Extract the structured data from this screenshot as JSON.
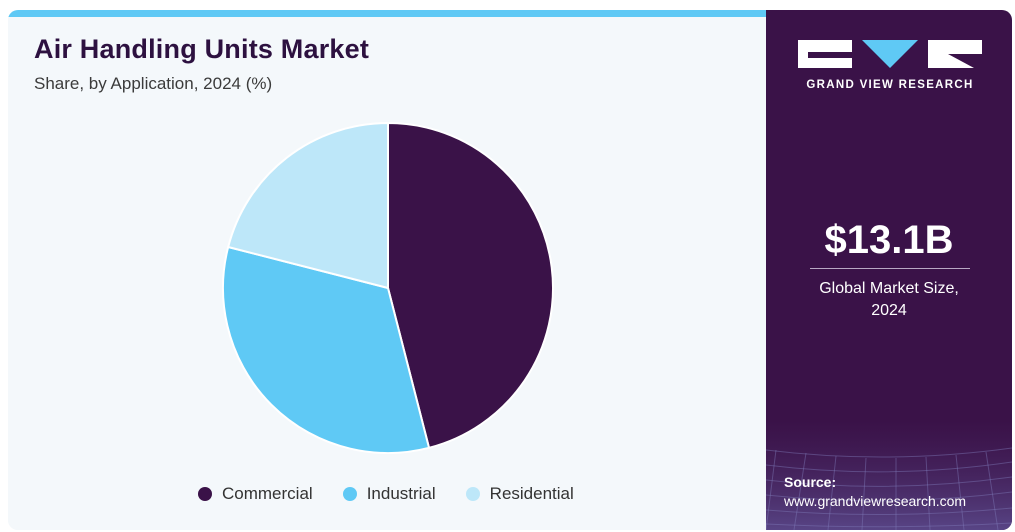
{
  "chart_data": {
    "type": "pie",
    "title": "Air Handling Units Market",
    "subtitle": "Share, by Application, 2024 (%)",
    "categories": [
      "Commercial",
      "Industrial",
      "Residential"
    ],
    "values": [
      46.0,
      33.0,
      21.0
    ],
    "colors": [
      "#3a1248",
      "#5fc9f5",
      "#bde7f9"
    ],
    "legend": "bottom",
    "start_angle_deg": 0,
    "direction": "clockwise"
  },
  "brand": {
    "name": "GRAND VIEW RESEARCH"
  },
  "kpi": {
    "value": "$13.1B",
    "label_line1": "Global Market Size,",
    "label_line2": "2024"
  },
  "source": {
    "label": "Source:",
    "url": "www.grandviewresearch.com"
  }
}
